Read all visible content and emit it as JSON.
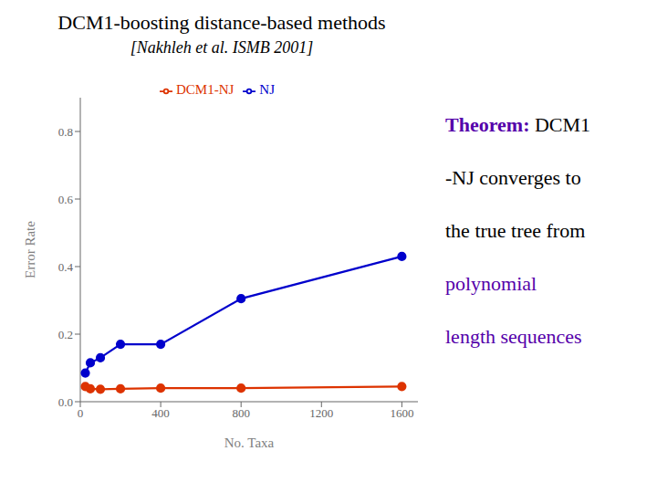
{
  "chart_data": {
    "type": "line",
    "title": "DCM1-boosting distance-based methods",
    "subtitle": "[Nakhleh et al. ISMB 2001]",
    "x_label": "No. Taxa",
    "y_label": "Error Rate",
    "x": [
      25,
      50,
      100,
      200,
      400,
      800,
      1600
    ],
    "series": [
      {
        "name": "NJ",
        "color": "#0000cc",
        "marker": "circle",
        "values": [
          0.085,
          0.115,
          0.13,
          0.17,
          0.17,
          0.305,
          0.43
        ]
      },
      {
        "name": "DCM1-NJ",
        "color": "#dd3300",
        "marker": "circle",
        "values": [
          0.045,
          0.038,
          0.037,
          0.038,
          0.04,
          0.04,
          0.045
        ]
      }
    ],
    "xlim": [
      0,
      1680
    ],
    "ylim": [
      0,
      0.9
    ],
    "xticks": [
      0,
      400,
      800,
      1200,
      1600
    ],
    "yticks": [
      {
        "value": 0,
        "label": "0.0"
      },
      0.2,
      0.4,
      0.6,
      0.8
    ],
    "grid": false,
    "legend": "upper center",
    "annotations": [
      [
        {
          "text": "Theorem:",
          "color": "#5500aa"
        },
        {
          "text": " DCM1",
          "color": "#000000"
        }
      ],
      [
        {
          "text": "-NJ converges to",
          "color": "#000000"
        }
      ],
      [
        {
          "text": "the true tree from",
          "color": "#000000"
        }
      ],
      [
        {
          "text": "polynomial",
          "color": "#5500aa"
        }
      ],
      [
        {
          "text": "length sequences",
          "color": "#5500aa"
        }
      ]
    ]
  }
}
